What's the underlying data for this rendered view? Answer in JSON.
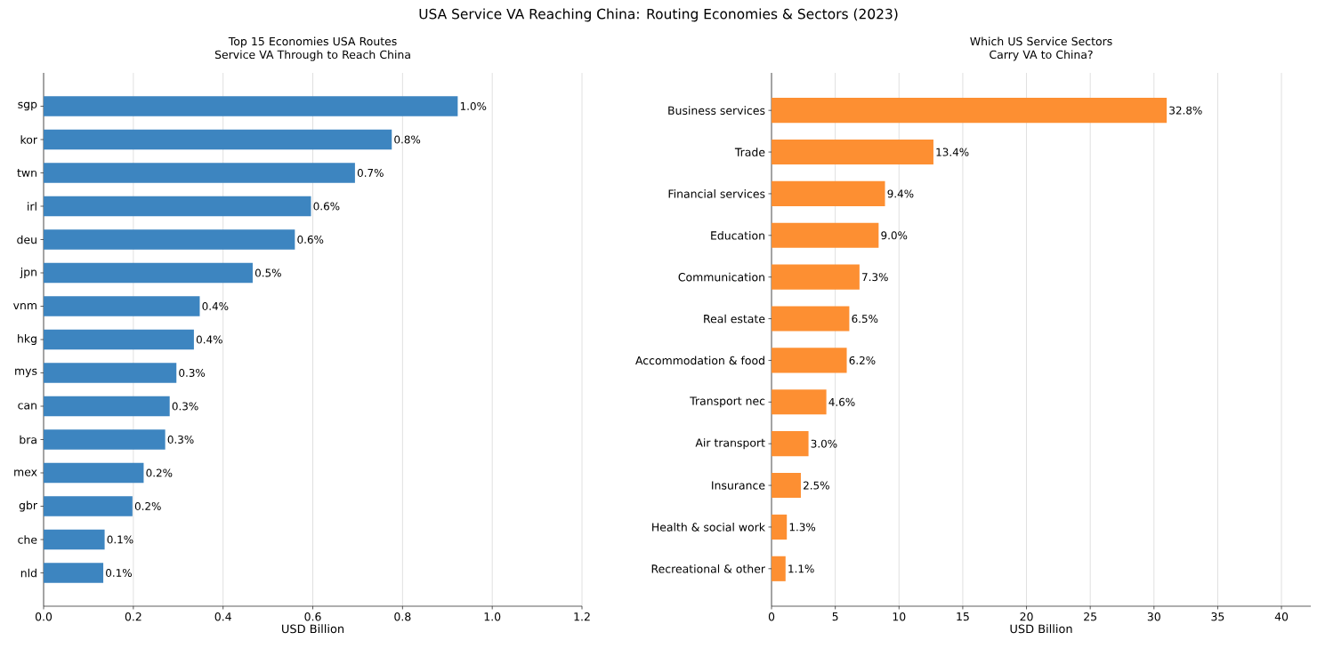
{
  "chart_data": [
    {
      "type": "bar",
      "orientation": "horizontal",
      "title": "Top 15 Economies USA Routes Service VA Through to Reach China",
      "xlabel": "USD Billion",
      "categories": [
        "sgp",
        "kor",
        "twn",
        "irl",
        "deu",
        "jpn",
        "vnm",
        "hkg",
        "mys",
        "can",
        "bra",
        "mex",
        "gbr",
        "che",
        "nld"
      ],
      "values": [
        0.923,
        0.776,
        0.694,
        0.596,
        0.56,
        0.466,
        0.348,
        0.335,
        0.296,
        0.281,
        0.271,
        0.223,
        0.198,
        0.136,
        0.133
      ],
      "annotations": [
        "USA Service VA Reaching China: Routing Economies & Sectors (2023)",
        {
          "text": "1.0%",
          "x": 0.923,
          "y": "sgp"
        },
        {
          "text": "0.8%",
          "x": 0.776,
          "y": "kor"
        },
        {
          "text": "0.7%",
          "x": 0.694,
          "y": "twn"
        },
        {
          "text": "0.6%",
          "x": 0.596,
          "y": "irl"
        },
        {
          "text": "0.6%",
          "x": 0.56,
          "y": "deu"
        },
        {
          "text": "0.5%",
          "x": 0.466,
          "y": "jpn"
        },
        {
          "text": "0.4%",
          "x": 0.348,
          "y": "vnm"
        },
        {
          "text": "0.4%",
          "x": 0.335,
          "y": "hkg"
        },
        {
          "text": "0.3%",
          "x": 0.296,
          "y": "mys"
        },
        {
          "text": "0.3%",
          "x": 0.281,
          "y": "can"
        },
        {
          "text": "0.3%",
          "x": 0.271,
          "y": "bra"
        },
        {
          "text": "0.2%",
          "x": 0.223,
          "y": "mex"
        },
        {
          "text": "0.2%",
          "x": 0.198,
          "y": "gbr"
        },
        {
          "text": "0.1%",
          "x": 0.136,
          "y": "che"
        },
        {
          "text": "0.1%",
          "x": 0.133,
          "y": "nld"
        }
      ],
      "color": "#3d85c0",
      "xlim": [
        0,
        1.2
      ],
      "xticks": [
        {
          "value": 0,
          "label": "0.0"
        },
        0.2,
        0.4,
        0.6,
        0.8,
        {
          "value": 1,
          "label": "1.0"
        },
        1.2
      ],
      "grid": "x"
    },
    {
      "type": "bar",
      "orientation": "horizontal",
      "title": "Which US Service Sectors Carry VA to China?",
      "xlabel": "USD Billion",
      "categories": [
        "Business services",
        "Trade",
        "Financial services",
        "Education",
        "Communication",
        "Real estate",
        "Accommodation & food",
        "Transport nec",
        "Air transport",
        "Insurance",
        "Health & social work",
        "Recreational & other"
      ],
      "values": [
        31.0,
        12.7,
        8.9,
        8.4,
        6.9,
        6.1,
        5.9,
        4.3,
        2.9,
        2.3,
        1.2,
        1.1
      ],
      "annotations": [
        {
          "text": "32.8%",
          "x": 31.0,
          "y": "Business services"
        },
        {
          "text": "13.4%",
          "x": 12.7,
          "y": "Trade"
        },
        {
          "text": "9.4%",
          "x": 8.9,
          "y": "Financial services"
        },
        {
          "text": "9.0%",
          "x": 8.4,
          "y": "Education"
        },
        {
          "text": "7.3%",
          "x": 6.9,
          "y": "Communication"
        },
        {
          "text": "6.5%",
          "x": 6.1,
          "y": "Real estate"
        },
        {
          "text": "6.2%",
          "x": 5.9,
          "y": "Accommodation & food"
        },
        {
          "text": "4.6%",
          "x": 4.3,
          "y": "Transport nec"
        },
        {
          "text": "3.0%",
          "x": 2.9,
          "y": "Air transport"
        },
        {
          "text": "2.5%",
          "x": 2.3,
          "y": "Insurance"
        },
        {
          "text": "1.3%",
          "x": 1.2,
          "y": "Health & social work"
        },
        {
          "text": "1.1%",
          "x": 1.1,
          "y": "Recreational & other"
        }
      ],
      "color": "#fd8f32",
      "xlim": [
        0,
        42.3
      ],
      "xticks": [
        0,
        5,
        10,
        15,
        20,
        25,
        30,
        35,
        40
      ],
      "grid": "x"
    }
  ]
}
